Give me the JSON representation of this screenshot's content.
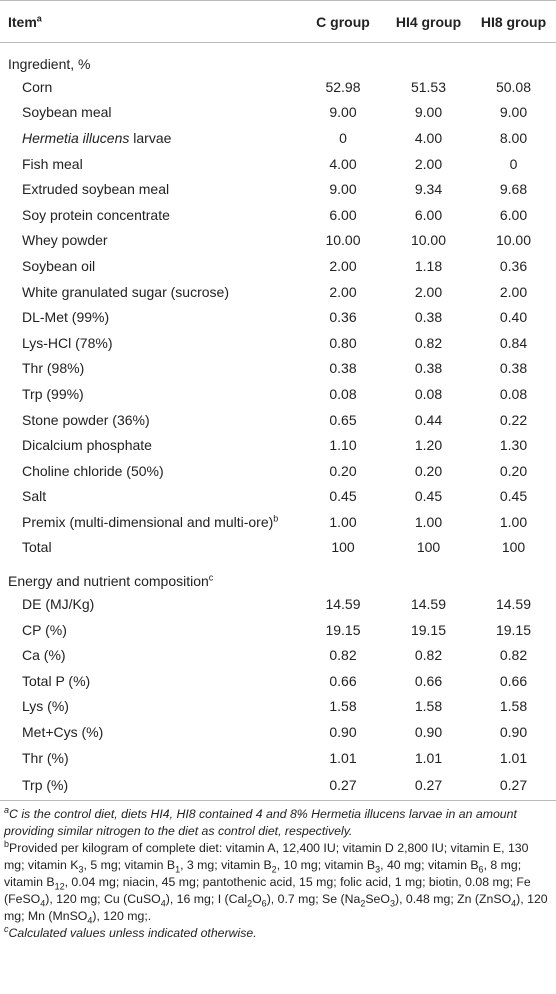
{
  "header": {
    "cells": [
      "Item",
      "C group",
      "HI4 group",
      "HI8 group"
    ],
    "item_sup": "a"
  },
  "sections": [
    {
      "title": "Ingredient, %",
      "rows": [
        {
          "label": "Corn",
          "values": [
            "52.98",
            "51.53",
            "50.08"
          ]
        },
        {
          "label": "Soybean meal",
          "values": [
            "9.00",
            "9.00",
            "9.00"
          ]
        },
        {
          "label": [
            {
              "text": "Hermetia illucens",
              "style": "italic"
            },
            " larvae"
          ],
          "values": [
            "0",
            "4.00",
            "8.00"
          ]
        },
        {
          "label": "Fish meal",
          "values": [
            "4.00",
            "2.00",
            "0"
          ]
        },
        {
          "label": "Extruded soybean meal",
          "values": [
            "9.00",
            "9.34",
            "9.68"
          ]
        },
        {
          "label": "Soy protein concentrate",
          "values": [
            "6.00",
            "6.00",
            "6.00"
          ]
        },
        {
          "label": "Whey powder",
          "values": [
            "10.00",
            "10.00",
            "10.00"
          ]
        },
        {
          "label": "Soybean oil",
          "values": [
            "2.00",
            "1.18",
            "0.36"
          ]
        },
        {
          "label": "White granulated sugar (sucrose)",
          "values": [
            "2.00",
            "2.00",
            "2.00"
          ]
        },
        {
          "label": "DL-Met (99%)",
          "values": [
            "0.36",
            "0.38",
            "0.40"
          ]
        },
        {
          "label": "Lys-HCl (78%)",
          "values": [
            "0.80",
            "0.82",
            "0.84"
          ]
        },
        {
          "label": "Thr (98%)",
          "values": [
            "0.38",
            "0.38",
            "0.38"
          ]
        },
        {
          "label": "Trp (99%)",
          "values": [
            "0.08",
            "0.08",
            "0.08"
          ]
        },
        {
          "label": "Stone powder (36%)",
          "values": [
            "0.65",
            "0.44",
            "0.22"
          ]
        },
        {
          "label": "Dicalcium phosphate",
          "values": [
            "1.10",
            "1.20",
            "1.30"
          ]
        },
        {
          "label": "Choline chloride (50%)",
          "values": [
            "0.20",
            "0.20",
            "0.20"
          ]
        },
        {
          "label": "Salt",
          "values": [
            "0.45",
            "0.45",
            "0.45"
          ]
        },
        {
          "label": [
            "Premix (multi-dimensional and multi-ore)",
            {
              "text": "b",
              "style": "sup"
            }
          ],
          "values": [
            "1.00",
            "1.00",
            "1.00"
          ]
        },
        {
          "label": "Total",
          "values": [
            "100",
            "100",
            "100"
          ]
        }
      ]
    },
    {
      "title": "Energy and nutrient composition",
      "title_sup": "c",
      "rows": [
        {
          "label": "DE (MJ/Kg)",
          "values": [
            "14.59",
            "14.59",
            "14.59"
          ]
        },
        {
          "label": "CP (%)",
          "values": [
            "19.15",
            "19.15",
            "19.15"
          ]
        },
        {
          "label": "Ca (%)",
          "values": [
            "0.82",
            "0.82",
            "0.82"
          ]
        },
        {
          "label": "Total P (%)",
          "values": [
            "0.66",
            "0.66",
            "0.66"
          ]
        },
        {
          "label": "Lys (%)",
          "values": [
            "1.58",
            "1.58",
            "1.58"
          ]
        },
        {
          "label": "Met+Cys (%)",
          "values": [
            "0.90",
            "0.90",
            "0.90"
          ]
        },
        {
          "label": "Thr (%)",
          "values": [
            "1.01",
            "1.01",
            "1.01"
          ]
        },
        {
          "label": "Trp (%)",
          "values": [
            "0.27",
            "0.27",
            "0.27"
          ]
        }
      ]
    }
  ],
  "footnotes": [
    {
      "italic": true,
      "parts": [
        {
          "text": "a",
          "style": "sup"
        },
        "C is the control diet, diets HI4, HI8 contained 4 and 8% Hermetia illucens larvae in an amount providing similar nitrogen to the diet as control diet, respectively."
      ]
    },
    {
      "italic": false,
      "parts": [
        {
          "text": "b",
          "style": "sup"
        },
        "Provided per kilogram of complete diet: vitamin A, 12,400 IU; vitamin D 2,800 IU; vitamin E, 130 mg; vitamin K",
        {
          "text": "3",
          "style": "sub"
        },
        ", 5 mg; vitamin B",
        {
          "text": "1",
          "style": "sub"
        },
        ", 3 mg; vitamin B",
        {
          "text": "2",
          "style": "sub"
        },
        ", 10 mg; vitamin B",
        {
          "text": "3",
          "style": "sub"
        },
        ", 40 mg; vitamin B",
        {
          "text": "6",
          "style": "sub"
        },
        ", 8 mg; vitamin B",
        {
          "text": "12",
          "style": "sub"
        },
        ", 0.04 mg; niacin, 45 mg; pantothenic acid, 15 mg; folic acid, 1 mg; biotin, 0.08 mg; Fe (FeSO",
        {
          "text": "4",
          "style": "sub"
        },
        "), 120 mg; Cu (CuSO",
        {
          "text": "4",
          "style": "sub"
        },
        "), 16 mg; I (Cal",
        {
          "text": "2",
          "style": "sub"
        },
        "O",
        {
          "text": "6",
          "style": "sub"
        },
        "), 0.7 mg; Se (Na",
        {
          "text": "2",
          "style": "sub"
        },
        "SeO",
        {
          "text": "3",
          "style": "sub"
        },
        "), 0.48 mg; Zn (ZnSO",
        {
          "text": "4",
          "style": "sub"
        },
        "), 120 mg; Mn (MnSO",
        {
          "text": "4",
          "style": "sub"
        },
        "), 120 mg;."
      ]
    },
    {
      "italic": true,
      "parts": [
        {
          "text": "c",
          "style": "sup"
        },
        "Calculated values unless indicated otherwise."
      ]
    }
  ]
}
